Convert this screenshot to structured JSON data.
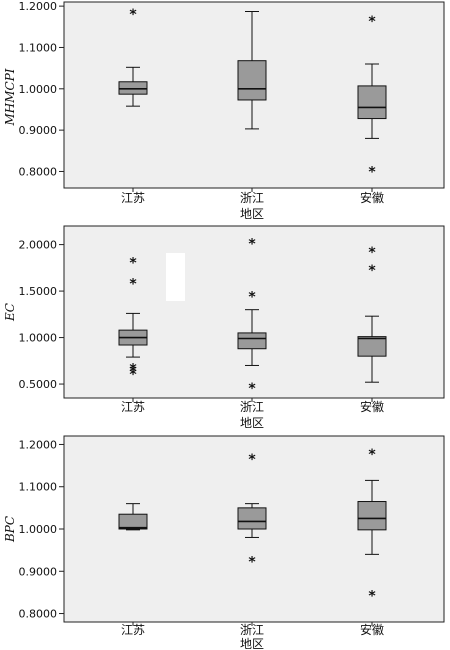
{
  "chart_data": [
    {
      "type": "boxplot",
      "ylabel": "MHMCPI",
      "xlabel": "地区",
      "categories": [
        "江苏",
        "浙江",
        "安徽"
      ],
      "ylim": [
        0.76,
        1.21
      ],
      "yticks": [
        "0.8000",
        "0.9000",
        "1.0000",
        "1.1000",
        "1.2000"
      ],
      "boxes": [
        {
          "category": "江苏",
          "whisker_low": 0.958,
          "q1": 0.987,
          "median": 1.0,
          "q3": 1.017,
          "whisker_high": 1.052,
          "outliers": [
            1.183
          ]
        },
        {
          "category": "浙江",
          "whisker_low": 0.903,
          "q1": 0.973,
          "median": 1.0,
          "q3": 1.068,
          "whisker_high": 1.187,
          "outliers": []
        },
        {
          "category": "安徽",
          "whisker_low": 0.88,
          "q1": 0.928,
          "median": 0.955,
          "q3": 1.007,
          "whisker_high": 1.06,
          "outliers": [
            1.167,
            0.802
          ]
        }
      ],
      "colors": {
        "panel": "#efefef",
        "box": "#9a9a9a",
        "stroke": "#111111"
      }
    },
    {
      "type": "boxplot",
      "ylabel": "EC",
      "xlabel": "地区",
      "categories": [
        "江苏",
        "浙江",
        "安徽"
      ],
      "ylim": [
        0.35,
        2.2
      ],
      "yticks": [
        "0.5000",
        "1.0000",
        "1.5000",
        "2.0000"
      ],
      "boxes": [
        {
          "category": "江苏",
          "whisker_low": 0.79,
          "q1": 0.92,
          "median": 1.0,
          "q3": 1.08,
          "whisker_high": 1.26,
          "outliers": [
            1.82,
            1.59,
            0.68,
            0.65,
            0.62
          ]
        },
        {
          "category": "浙江",
          "whisker_low": 0.7,
          "q1": 0.88,
          "median": 0.99,
          "q3": 1.05,
          "whisker_high": 1.3,
          "outliers": [
            2.02,
            1.45,
            0.47
          ]
        },
        {
          "category": "安徽",
          "whisker_low": 0.52,
          "q1": 0.8,
          "median": 0.99,
          "q3": 1.01,
          "whisker_high": 1.23,
          "outliers": [
            1.93,
            1.74
          ]
        }
      ],
      "colors": {
        "panel": "#efefef",
        "box": "#9a9a9a",
        "stroke": "#111111"
      }
    },
    {
      "type": "boxplot",
      "ylabel": "BPC",
      "xlabel": "地区",
      "categories": [
        "江苏",
        "浙江",
        "安徽"
      ],
      "ylim": [
        0.78,
        1.22
      ],
      "yticks": [
        "0.8000",
        "0.9000",
        "1.0000",
        "1.1000",
        "1.2000"
      ],
      "boxes": [
        {
          "category": "江苏",
          "whisker_low": 0.998,
          "q1": 1.0,
          "median": 1.003,
          "q3": 1.035,
          "whisker_high": 1.06,
          "outliers": []
        },
        {
          "category": "浙江",
          "whisker_low": 0.98,
          "q1": 1.0,
          "median": 1.018,
          "q3": 1.05,
          "whisker_high": 1.06,
          "outliers": [
            1.168,
            0.925
          ]
        },
        {
          "category": "安徽",
          "whisker_low": 0.94,
          "q1": 0.998,
          "median": 1.025,
          "q3": 1.065,
          "whisker_high": 1.115,
          "outliers": [
            1.18,
            0.845
          ]
        }
      ],
      "colors": {
        "panel": "#efefef",
        "box": "#9a9a9a",
        "stroke": "#111111"
      }
    }
  ]
}
